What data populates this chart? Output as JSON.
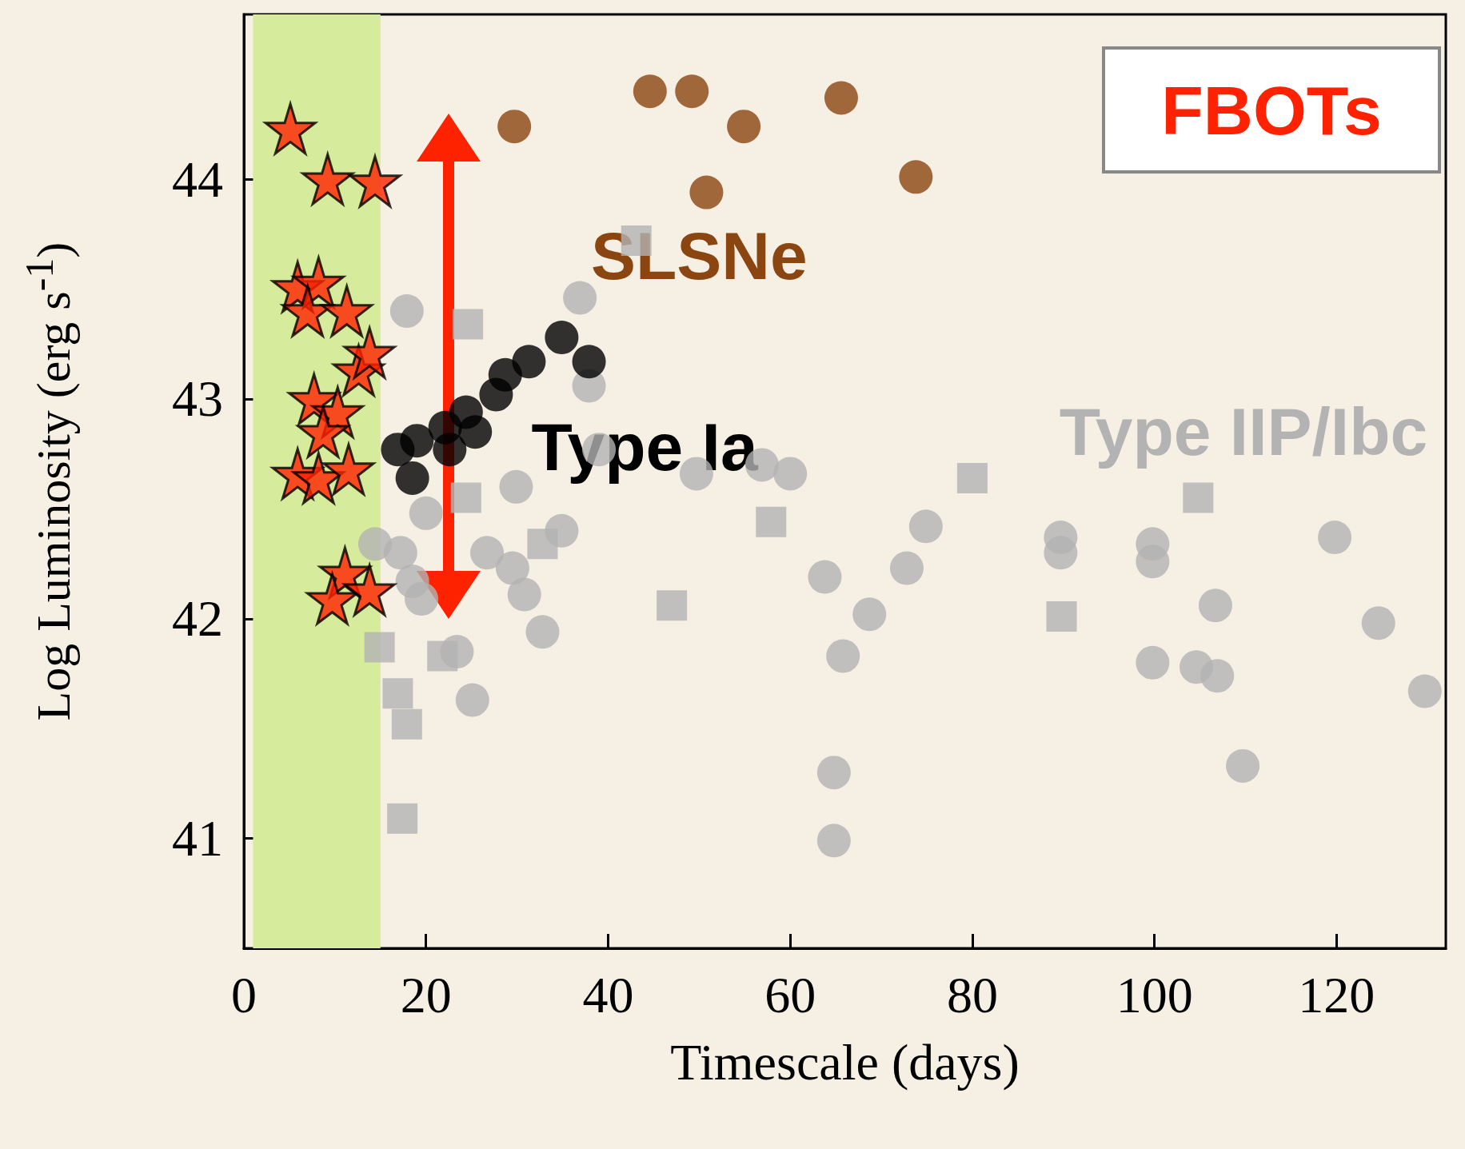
{
  "chart_data": {
    "type": "scatter",
    "xlabel": "Timescale (days)",
    "ylabel": "Log Luminosity (erg s$^{-1}$)",
    "xlim": [
      0,
      132
    ],
    "ylim": [
      40.5,
      44.75
    ],
    "xticks": [
      0,
      20,
      40,
      60,
      80,
      100,
      120
    ],
    "yticks": [
      41,
      42,
      43,
      44
    ],
    "grid": false,
    "legend": false,
    "bands": [
      {
        "axis": "x",
        "from": 1,
        "to": 15,
        "color": "#d6ec9c"
      }
    ],
    "series": [
      {
        "name": "Type IIP/Ibc",
        "color": "#b3b3b3",
        "marker": "circle",
        "x": [
          17.9,
          36.9,
          37.9,
          29.9,
          39.0,
          49.7,
          56.9,
          60.0,
          14.4,
          17.2,
          20.0,
          18.5,
          26.7,
          29.5,
          34.9,
          30.8,
          32.8,
          23.4,
          25.1,
          19.5,
          63.8,
          68.7,
          65.8,
          72.8,
          74.9,
          64.8,
          64.8,
          89.7,
          89.7,
          99.8,
          99.8,
          99.8,
          104.6,
          106.9,
          106.7,
          109.7,
          119.8,
          124.6,
          129.7
        ],
        "values": [
          43.4,
          43.46,
          43.06,
          42.6,
          42.77,
          42.66,
          42.7,
          42.66,
          42.34,
          42.3,
          42.48,
          42.17,
          42.3,
          42.23,
          42.4,
          42.11,
          41.94,
          41.85,
          41.63,
          42.09,
          42.19,
          42.02,
          41.83,
          42.23,
          42.42,
          41.3,
          40.99,
          42.37,
          42.3,
          42.34,
          42.26,
          41.8,
          41.78,
          41.74,
          42.06,
          41.33,
          42.37,
          41.98,
          41.67
        ]
      },
      {
        "color": "#b3b3b3",
        "marker": "square",
        "x": [
          43.1,
          24.6,
          24.4,
          57.9,
          47.0,
          80.0,
          104.8,
          89.8,
          14.9,
          21.8,
          16.9,
          17.9,
          17.4,
          32.8
        ],
        "values": [
          43.72,
          43.34,
          42.55,
          42.44,
          42.06,
          42.64,
          42.55,
          42.01,
          41.87,
          41.83,
          41.66,
          41.52,
          41.09,
          42.34
        ]
      },
      {
        "name": "SLSNe",
        "color": "#8b4510",
        "marker": "circle",
        "x": [
          29.7,
          44.6,
          49.2,
          54.9,
          50.8,
          65.6,
          73.8
        ],
        "values": [
          44.24,
          44.4,
          44.4,
          44.24,
          43.94,
          44.37,
          44.01
        ]
      },
      {
        "name": "Type Ia",
        "color": "#000000",
        "marker": "circle",
        "x": [
          16.9,
          18.5,
          19.0,
          22.1,
          22.6,
          24.4,
          25.4,
          27.7,
          28.7,
          31.3,
          34.9,
          37.9
        ],
        "values": [
          42.77,
          42.64,
          42.81,
          42.87,
          42.77,
          42.94,
          42.85,
          43.02,
          43.11,
          43.17,
          43.28,
          43.17
        ]
      },
      {
        "name": "FBOTs",
        "color": "#ff2200",
        "marker": "star",
        "x": [
          5.1,
          9.2,
          14.4,
          5.9,
          8.2,
          7.0,
          11.3,
          12.6,
          13.8,
          7.7,
          10.3,
          8.7,
          5.9,
          8.2,
          11.5,
          11.1,
          9.7,
          13.8
        ],
        "values": [
          44.23,
          44.0,
          43.99,
          43.51,
          43.53,
          43.4,
          43.4,
          43.13,
          43.21,
          43.0,
          42.94,
          42.85,
          42.66,
          42.64,
          42.68,
          42.21,
          42.09,
          42.13
        ]
      }
    ]
  }
}
